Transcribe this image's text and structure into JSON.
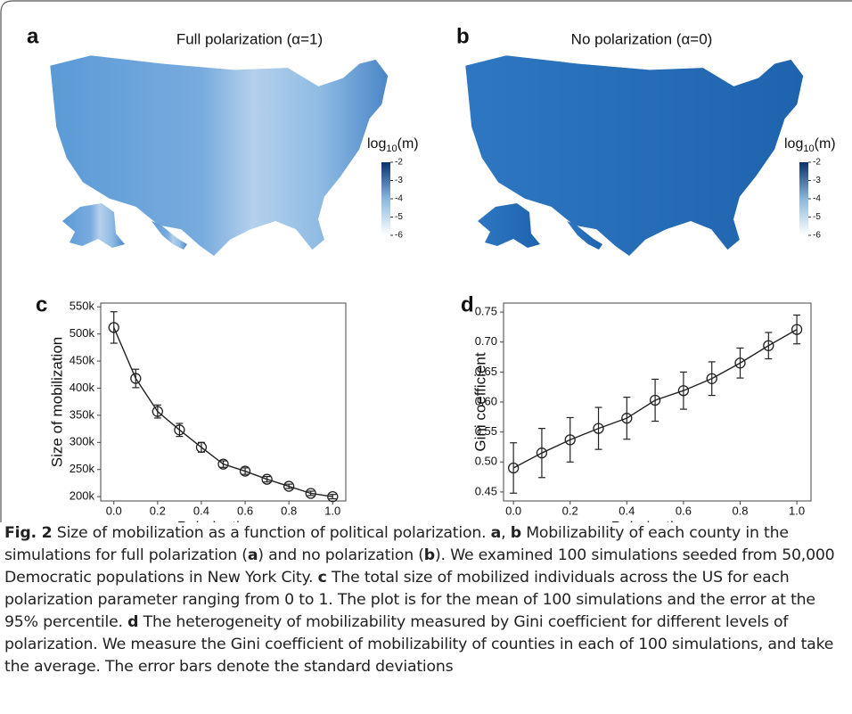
{
  "chart_data": [
    {
      "type": "map",
      "panel_label": "a",
      "title": "Full polarization (α=1)",
      "legend_title": [
        "log",
        "10",
        "(m)"
      ],
      "colorbar_lim": [
        -6,
        -2
      ],
      "colorbar_ticks": [
        -2,
        -3,
        -4,
        -5,
        -6
      ],
      "color": "#2166ac"
    },
    {
      "type": "map",
      "panel_label": "b",
      "title": "No polarization (α=0)",
      "legend_title": [
        "log",
        "10",
        "(m)"
      ],
      "colorbar_lim": [
        -6,
        -2
      ],
      "colorbar_ticks": [
        -2,
        -3,
        -4,
        -5,
        -6
      ],
      "color": "#2166ac"
    },
    {
      "type": "line",
      "panel_label": "c",
      "xlabel": "Polarization α",
      "ylabel": "Size of mobilization",
      "x": [
        0,
        0.1,
        0.2,
        0.3,
        0.4,
        0.5,
        0.6,
        0.7,
        0.8,
        0.9,
        1.0
      ],
      "values": [
        512000,
        418000,
        357000,
        323000,
        291000,
        260000,
        247000,
        232000,
        219000,
        206000,
        200000
      ],
      "errors": [
        29000,
        17000,
        12000,
        12000,
        9000,
        6000,
        6000,
        5000,
        4000,
        4000,
        4000
      ],
      "xlim": [
        -0.06,
        1.06
      ],
      "xticks": [
        {
          "value": 0,
          "label": "0.0"
        },
        0.2,
        0.4,
        0.6,
        0.8,
        {
          "value": 1,
          "label": "1.0"
        }
      ],
      "ylim": [
        192000,
        557000
      ],
      "yticks": [
        {
          "value": 200000,
          "label": "200k"
        },
        {
          "value": 250000,
          "label": "250k"
        },
        {
          "value": 300000,
          "label": "300k"
        },
        {
          "value": 350000,
          "label": "350k"
        },
        {
          "value": 400000,
          "label": "400k"
        },
        {
          "value": 450000,
          "label": "450k"
        },
        {
          "value": 500000,
          "label": "500k"
        },
        {
          "value": 550000,
          "label": "550k"
        }
      ],
      "color": "#222222"
    },
    {
      "type": "line",
      "panel_label": "d",
      "xlabel": "Polarization α",
      "ylabel": "Gini coefficient",
      "x": [
        0,
        0.1,
        0.2,
        0.3,
        0.4,
        0.5,
        0.6,
        0.7,
        0.8,
        0.9,
        1.0
      ],
      "values": [
        0.49,
        0.515,
        0.537,
        0.556,
        0.573,
        0.603,
        0.619,
        0.639,
        0.665,
        0.694,
        0.721
      ],
      "errors": [
        0.042,
        0.041,
        0.037,
        0.035,
        0.035,
        0.035,
        0.031,
        0.028,
        0.025,
        0.022,
        0.024
      ],
      "xlim": [
        -0.035,
        1.05
      ],
      "xticks": [
        {
          "value": 0,
          "label": "0.0"
        },
        0.2,
        0.4,
        0.6,
        0.8,
        {
          "value": 1,
          "label": "1.0"
        }
      ],
      "ylim": [
        0.435,
        0.765
      ],
      "yticks": [
        0.45,
        {
          "value": 0.5,
          "label": "0.50"
        },
        0.55,
        {
          "value": 0.6,
          "label": "0.60"
        },
        0.65,
        {
          "value": 0.7,
          "label": "0.70"
        },
        0.75
      ],
      "color": "#222222"
    }
  ],
  "caption": [
    {
      "text": "Fig. 2",
      "bold": true
    },
    {
      "text": "  Size of mobilization as a function of political polarization. ",
      "bold": false
    },
    {
      "text": "a",
      "bold": true
    },
    {
      "text": ", ",
      "bold": false
    },
    {
      "text": "b",
      "bold": true
    },
    {
      "text": " Mobilizability of each county in the simulations for full polarization (",
      "bold": false
    },
    {
      "text": "a",
      "bold": true
    },
    {
      "text": ") and no polarization (",
      "bold": false
    },
    {
      "text": "b",
      "bold": true
    },
    {
      "text": "). We examined 100 simulations seeded from 50,000 Democratic populations in New York City. ",
      "bold": false
    },
    {
      "text": "c",
      "bold": true
    },
    {
      "text": " The total size of mobilized individuals across the US for each polarization parameter ranging from 0 to 1. The plot is for the mean of 100 simulations and the error at the 95% percentile. ",
      "bold": false
    },
    {
      "text": "d",
      "bold": true
    },
    {
      "text": " The heterogeneity of mobilizability measured by Gini coefficient for different levels of polarization. We measure the Gini coefficient of mobilizability of counties in each of 100 simulations, and take the average. The error bars denote the standard deviations",
      "bold": false
    }
  ]
}
